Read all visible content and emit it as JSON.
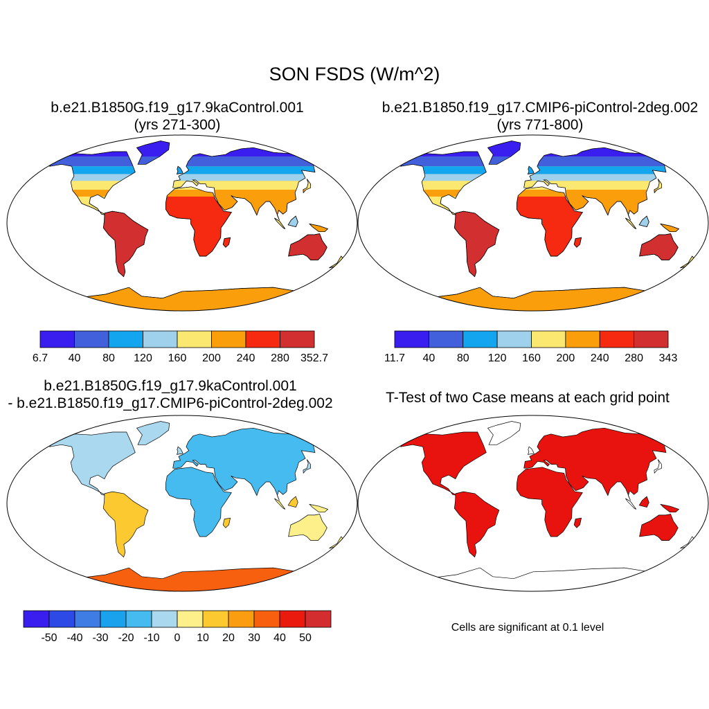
{
  "title": "SON FSDS (W/m^2)",
  "panels": [
    {
      "id": "case1",
      "title_lines": [
        "b.e21.B1850G.f19_g17.9kaControl.001",
        "(yrs 271-300)"
      ],
      "colorbar": {
        "colors": [
          "#3a1ef0",
          "#4260dc",
          "#14a5ef",
          "#9fd0ec",
          "#fbe870",
          "#fa9e0c",
          "#f52a11",
          "#d23030"
        ],
        "labels": [
          "6.7",
          "40",
          "80",
          "120",
          "160",
          "200",
          "240",
          "280",
          "352.7"
        ]
      }
    },
    {
      "id": "case2",
      "title_lines": [
        "b.e21.B1850.f19_g17.CMIP6-piControl-2deg.002",
        "(yrs 771-800)"
      ],
      "colorbar": {
        "colors": [
          "#3a1ef0",
          "#4260dc",
          "#14a5ef",
          "#9fd0ec",
          "#fbe870",
          "#fa9e0c",
          "#f52a11",
          "#d23030"
        ],
        "labels": [
          "11.7",
          "40",
          "80",
          "120",
          "160",
          "200",
          "240",
          "280",
          "343"
        ]
      }
    },
    {
      "id": "difference",
      "title_lines": [
        "b.e21.B1850G.f19_g17.9kaControl.001",
        "- b.e21.B1850.f19_g17.CMIP6-piControl-2deg.002"
      ],
      "colorbar": {
        "colors": [
          "#3a1ef0",
          "#2d49e6",
          "#3f7ce4",
          "#1aa2ec",
          "#45bbef",
          "#a9d8ef",
          "#fdf08a",
          "#fcc930",
          "#fa9d10",
          "#f7600f",
          "#eb1a0e",
          "#d32d2f"
        ],
        "labels": [
          "-50",
          "-40",
          "-30",
          "-20",
          "-10",
          "0",
          "10",
          "20",
          "30",
          "40",
          "50"
        ]
      }
    },
    {
      "id": "ttest",
      "title_lines": [
        "T-Test of two Case means at each grid point"
      ],
      "note": "Cells are significant at 0.1 level",
      "fill_color": "#e8130f"
    }
  ]
}
